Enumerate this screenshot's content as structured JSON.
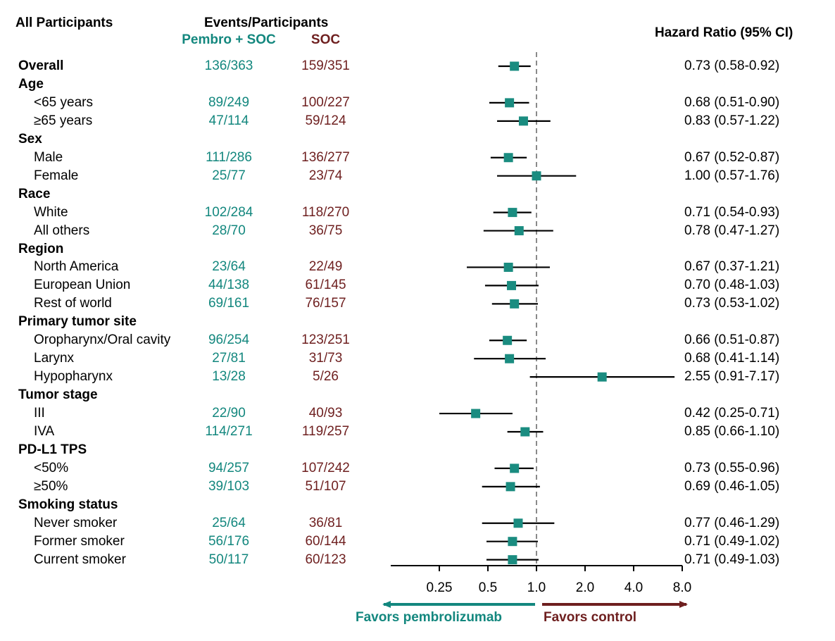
{
  "header": {
    "all_participants": "All Participants",
    "events_participants": "Events/Participants",
    "arm_treatment": "Pembro + SOC",
    "arm_control": "SOC",
    "hazard_ratio": "Hazard Ratio (95% CI)"
  },
  "rows": [
    {
      "label": "Overall",
      "group": true,
      "ev1": "136/363",
      "ev2": "159/351",
      "hr_text": "0.73 (0.58-0.92)",
      "hr": 0.73,
      "lo": 0.58,
      "hi": 0.92
    },
    {
      "label": "Age",
      "group": true
    },
    {
      "label": "<65 years",
      "ev1": "89/249",
      "ev2": "100/227",
      "hr_text": "0.68 (0.51-0.90)",
      "hr": 0.68,
      "lo": 0.51,
      "hi": 0.9
    },
    {
      "label": "≥65 years",
      "ev1": "47/114",
      "ev2": "59/124",
      "hr_text": "0.83 (0.57-1.22)",
      "hr": 0.83,
      "lo": 0.57,
      "hi": 1.22
    },
    {
      "label": "Sex",
      "group": true
    },
    {
      "label": "Male",
      "ev1": "111/286",
      "ev2": "136/277",
      "hr_text": "0.67 (0.52-0.87)",
      "hr": 0.67,
      "lo": 0.52,
      "hi": 0.87
    },
    {
      "label": "Female",
      "ev1": "25/77",
      "ev2": "23/74",
      "hr_text": "1.00 (0.57-1.76)",
      "hr": 1.0,
      "lo": 0.57,
      "hi": 1.76
    },
    {
      "label": "Race",
      "group": true
    },
    {
      "label": "White",
      "ev1": "102/284",
      "ev2": "118/270",
      "hr_text": "0.71 (0.54-0.93)",
      "hr": 0.71,
      "lo": 0.54,
      "hi": 0.93
    },
    {
      "label": "All others",
      "ev1": "28/70",
      "ev2": "36/75",
      "hr_text": "0.78 (0.47-1.27)",
      "hr": 0.78,
      "lo": 0.47,
      "hi": 1.27
    },
    {
      "label": "Region",
      "group": true
    },
    {
      "label": "North America",
      "ev1": "23/64",
      "ev2": "22/49",
      "hr_text": "0.67 (0.37-1.21)",
      "hr": 0.67,
      "lo": 0.37,
      "hi": 1.21
    },
    {
      "label": "European Union",
      "ev1": "44/138",
      "ev2": "61/145",
      "hr_text": "0.70 (0.48-1.03)",
      "hr": 0.7,
      "lo": 0.48,
      "hi": 1.03
    },
    {
      "label": "Rest of world",
      "ev1": "69/161",
      "ev2": "76/157",
      "hr_text": "0.73 (0.53-1.02)",
      "hr": 0.73,
      "lo": 0.53,
      "hi": 1.02
    },
    {
      "label": "Primary tumor site",
      "group": true
    },
    {
      "label": "Oropharynx/Oral cavity",
      "ev1": "96/254",
      "ev2": "123/251",
      "hr_text": "0.66 (0.51-0.87)",
      "hr": 0.66,
      "lo": 0.51,
      "hi": 0.87
    },
    {
      "label": "Larynx",
      "ev1": "27/81",
      "ev2": "31/73",
      "hr_text": "0.68 (0.41-1.14)",
      "hr": 0.68,
      "lo": 0.41,
      "hi": 1.14
    },
    {
      "label": "Hypopharynx",
      "ev1": "13/28",
      "ev2": "5/26",
      "hr_text": "2.55 (0.91-7.17)",
      "hr": 2.55,
      "lo": 0.91,
      "hi": 7.17
    },
    {
      "label": "Tumor stage",
      "group": true
    },
    {
      "label": "III",
      "ev1": "22/90",
      "ev2": "40/93",
      "hr_text": "0.42 (0.25-0.71)",
      "hr": 0.42,
      "lo": 0.25,
      "hi": 0.71
    },
    {
      "label": "IVA",
      "ev1": "114/271",
      "ev2": "119/257",
      "hr_text": "0.85 (0.66-1.10)",
      "hr": 0.85,
      "lo": 0.66,
      "hi": 1.1
    },
    {
      "label": "PD-L1 TPS",
      "group": true
    },
    {
      "label": "<50%",
      "ev1": "94/257",
      "ev2": "107/242",
      "hr_text": "0.73 (0.55-0.96)",
      "hr": 0.73,
      "lo": 0.55,
      "hi": 0.96
    },
    {
      "label": "≥50%",
      "ev1": "39/103",
      "ev2": "51/107",
      "hr_text": "0.69 (0.46-1.05)",
      "hr": 0.69,
      "lo": 0.46,
      "hi": 1.05
    },
    {
      "label": "Smoking status",
      "group": true
    },
    {
      "label": "Never smoker",
      "ev1": "25/64",
      "ev2": "36/81",
      "hr_text": "0.77 (0.46-1.29)",
      "hr": 0.77,
      "lo": 0.46,
      "hi": 1.29
    },
    {
      "label": "Former smoker",
      "ev1": "56/176",
      "ev2": "60/144",
      "hr_text": "0.71 (0.49-1.02)",
      "hr": 0.71,
      "lo": 0.49,
      "hi": 1.02
    },
    {
      "label": "Current smoker",
      "ev1": "50/117",
      "ev2": "60/123",
      "hr_text": "0.71 (0.49-1.03)",
      "hr": 0.71,
      "lo": 0.49,
      "hi": 1.03
    }
  ],
  "chart_data": {
    "type": "scatter",
    "subtype": "forest-plot",
    "scale": "log",
    "xlim": [
      0.125,
      8.0
    ],
    "xticks": [
      0.25,
      0.5,
      1.0,
      2.0,
      4.0,
      8.0
    ],
    "xtick_labels": [
      "0.25",
      "0.5",
      "1.0",
      "2.0",
      "4.0",
      "8.0"
    ],
    "reference_line": 1.0,
    "favors_left": "Favors pembrolizumab",
    "favors_right": "Favors control"
  },
  "colors": {
    "teal": "#13877e",
    "maroon": "#6e1f1f",
    "marker": "#1a8c80",
    "reference": "#8a8a8a"
  }
}
